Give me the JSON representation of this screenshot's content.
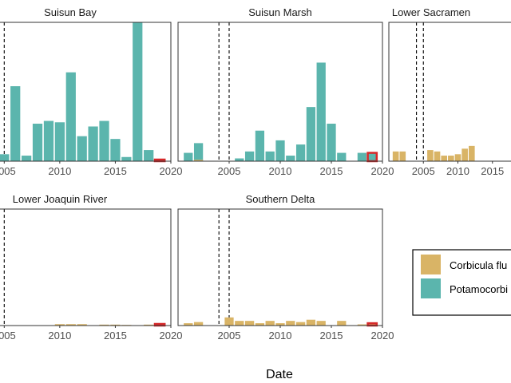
{
  "chart_data": {
    "type": "bar",
    "xlabel": "Date",
    "x_ticks": [
      2005,
      2010,
      2015,
      2020
    ],
    "reference_lines": [
      2004,
      2005
    ],
    "colors": {
      "Corbicula fluminea": "#d9b466",
      "Potamocorbula amurensis": "#5bb5ad",
      "highlight_outline": "#d62728"
    },
    "legend": {
      "entries": [
        {
          "label": "Corbicula flu",
          "color": "#d9b466"
        },
        {
          "label": "Potamocorbi",
          "color": "#5bb5ad"
        }
      ]
    },
    "panels": [
      {
        "title": "Suisun Bay",
        "x_domain": [
          2003.9,
          2020
        ],
        "y_max": 100,
        "highlight_year": 2019,
        "bars": [
          {
            "year": 2005,
            "series": "Potamocorbula amurensis",
            "value": 5
          },
          {
            "year": 2006,
            "series": "Potamocorbula amurensis",
            "value": 54
          },
          {
            "year": 2007,
            "series": "Potamocorbula amurensis",
            "value": 4
          },
          {
            "year": 2008,
            "series": "Potamocorbula amurensis",
            "value": 27
          },
          {
            "year": 2009,
            "series": "Potamocorbula amurensis",
            "value": 29
          },
          {
            "year": 2010,
            "series": "Potamocorbula amurensis",
            "value": 28
          },
          {
            "year": 2011,
            "series": "Potamocorbula amurensis",
            "value": 64
          },
          {
            "year": 2012,
            "series": "Potamocorbula amurensis",
            "value": 18
          },
          {
            "year": 2013,
            "series": "Potamocorbula amurensis",
            "value": 25
          },
          {
            "year": 2014,
            "series": "Potamocorbula amurensis",
            "value": 29
          },
          {
            "year": 2015,
            "series": "Potamocorbula amurensis",
            "value": 16
          },
          {
            "year": 2016,
            "series": "Potamocorbula amurensis",
            "value": 3
          },
          {
            "year": 2017,
            "series": "Potamocorbula amurensis",
            "value": 100
          },
          {
            "year": 2018,
            "series": "Potamocorbula amurensis",
            "value": 8
          }
        ]
      },
      {
        "title": "Suisun Marsh",
        "x_domain": [
          2000,
          2020
        ],
        "y_max": 100,
        "highlight_year": 2019,
        "bars": [
          {
            "year": 2001,
            "series": "Potamocorbula amurensis",
            "value": 6
          },
          {
            "year": 2002,
            "series": "Potamocorbula amurensis",
            "value": 13
          },
          {
            "year": 2002,
            "series": "Corbicula fluminea",
            "value": 1
          },
          {
            "year": 2006,
            "series": "Potamocorbula amurensis",
            "value": 2
          },
          {
            "year": 2007,
            "series": "Potamocorbula amurensis",
            "value": 7
          },
          {
            "year": 2008,
            "series": "Potamocorbula amurensis",
            "value": 22
          },
          {
            "year": 2009,
            "series": "Potamocorbula amurensis",
            "value": 7
          },
          {
            "year": 2010,
            "series": "Potamocorbula amurensis",
            "value": 15
          },
          {
            "year": 2011,
            "series": "Potamocorbula amurensis",
            "value": 4
          },
          {
            "year": 2012,
            "series": "Potamocorbula amurensis",
            "value": 12
          },
          {
            "year": 2013,
            "series": "Potamocorbula amurensis",
            "value": 39
          },
          {
            "year": 2014,
            "series": "Potamocorbula amurensis",
            "value": 71
          },
          {
            "year": 2015,
            "series": "Potamocorbula amurensis",
            "value": 27
          },
          {
            "year": 2016,
            "series": "Potamocorbula amurensis",
            "value": 6
          },
          {
            "year": 2018,
            "series": "Potamocorbula amurensis",
            "value": 6
          },
          {
            "year": 2019,
            "series": "Potamocorbula amurensis",
            "value": 6
          }
        ]
      },
      {
        "title": "Lower Sacramen",
        "x_domain": [
          2000,
          2020
        ],
        "y_max": 100,
        "bars": [
          {
            "year": 2001,
            "series": "Corbicula fluminea",
            "value": 7
          },
          {
            "year": 2002,
            "series": "Corbicula fluminea",
            "value": 7
          },
          {
            "year": 2006,
            "series": "Corbicula fluminea",
            "value": 8
          },
          {
            "year": 2007,
            "series": "Corbicula fluminea",
            "value": 7
          },
          {
            "year": 2008,
            "series": "Corbicula fluminea",
            "value": 4
          },
          {
            "year": 2009,
            "series": "Corbicula fluminea",
            "value": 4
          },
          {
            "year": 2010,
            "series": "Corbicula fluminea",
            "value": 5
          },
          {
            "year": 2011,
            "series": "Corbicula fluminea",
            "value": 9
          },
          {
            "year": 2012,
            "series": "Corbicula fluminea",
            "value": 11
          }
        ]
      },
      {
        "title": "Lower Joaquin River",
        "x_domain": [
          2003.9,
          2020
        ],
        "y_max": 100,
        "highlight_year": 2019,
        "bars": [
          {
            "year": 2010,
            "series": "Corbicula fluminea",
            "value": 1.2
          },
          {
            "year": 2011,
            "series": "Corbicula fluminea",
            "value": 1.2
          },
          {
            "year": 2012,
            "series": "Corbicula fluminea",
            "value": 1.2
          },
          {
            "year": 2014,
            "series": "Corbicula fluminea",
            "value": 0.8
          },
          {
            "year": 2015,
            "series": "Corbicula fluminea",
            "value": 0.8
          },
          {
            "year": 2016,
            "series": "Corbicula fluminea",
            "value": 0.4
          },
          {
            "year": 2018,
            "series": "Corbicula fluminea",
            "value": 0.8
          },
          {
            "year": 2019,
            "series": "Corbicula fluminea",
            "value": 0.8
          }
        ]
      },
      {
        "title": "Southern Delta",
        "x_domain": [
          2000,
          2020
        ],
        "y_max": 100,
        "highlight_year": 2019,
        "bars": [
          {
            "year": 2001,
            "series": "Corbicula fluminea",
            "value": 2
          },
          {
            "year": 2002,
            "series": "Corbicula fluminea",
            "value": 3
          },
          {
            "year": 2005,
            "series": "Corbicula fluminea",
            "value": 7
          },
          {
            "year": 2006,
            "series": "Corbicula fluminea",
            "value": 4
          },
          {
            "year": 2007,
            "series": "Corbicula fluminea",
            "value": 4
          },
          {
            "year": 2008,
            "series": "Corbicula fluminea",
            "value": 2
          },
          {
            "year": 2009,
            "series": "Corbicula fluminea",
            "value": 4
          },
          {
            "year": 2010,
            "series": "Corbicula fluminea",
            "value": 2
          },
          {
            "year": 2011,
            "series": "Corbicula fluminea",
            "value": 4
          },
          {
            "year": 2012,
            "series": "Corbicula fluminea",
            "value": 3
          },
          {
            "year": 2013,
            "series": "Corbicula fluminea",
            "value": 5
          },
          {
            "year": 2014,
            "series": "Corbicula fluminea",
            "value": 4
          },
          {
            "year": 2016,
            "series": "Corbicula fluminea",
            "value": 4
          },
          {
            "year": 2018,
            "series": "Corbicula fluminea",
            "value": 1
          },
          {
            "year": 2019,
            "series": "Corbicula fluminea",
            "value": 2
          }
        ]
      }
    ]
  }
}
